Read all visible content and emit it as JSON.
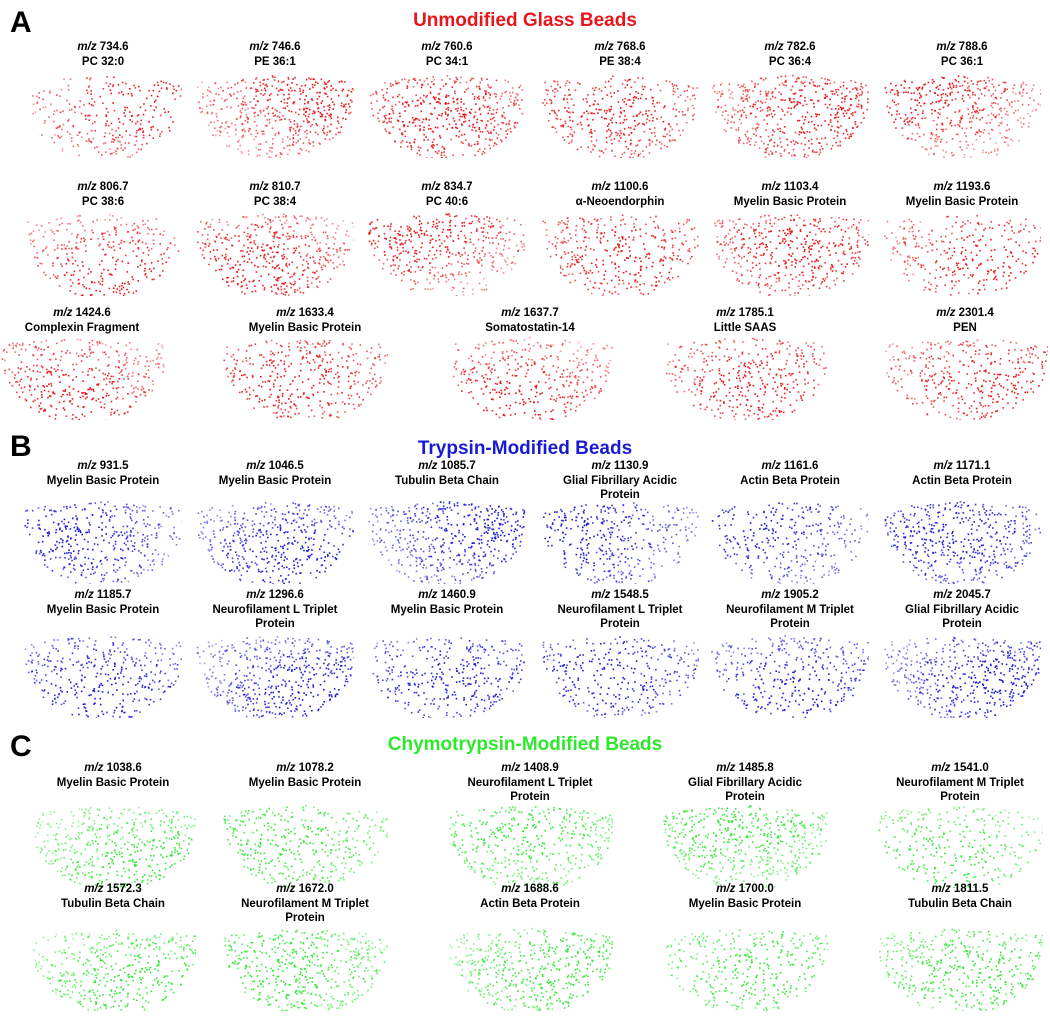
{
  "panels": [
    {
      "letter": "A",
      "title": "Unmodified Glass Beads",
      "rows": [
        [
          {
            "prefix": "m/z",
            "mz": "734.6",
            "name": "PC 32:0"
          },
          {
            "prefix": "m/z",
            "mz": "746.6",
            "name": "PE 36:1"
          },
          {
            "prefix": "m/z",
            "mz": "760.6",
            "name": "PC 34:1"
          },
          {
            "prefix": "m/z",
            "mz": "768.6",
            "name": "PE 38:4"
          },
          {
            "prefix": "m/z",
            "mz": "782.6",
            "name": "PC 36:4"
          },
          {
            "prefix": "m/z",
            "mz": "788.6",
            "name": "PC 36:1"
          }
        ],
        [
          {
            "prefix": "m/z",
            "mz": "806.7",
            "name": "PC 38:6"
          },
          {
            "prefix": "m/z",
            "mz": "810.7",
            "name": "PC 38:4"
          },
          {
            "prefix": "m/z",
            "mz": "834.7",
            "name": "PC 40:6"
          },
          {
            "prefix": "m/z",
            "mz": "1100.6",
            "name": "α-Neoendorphin"
          },
          {
            "prefix": "m/z",
            "mz": "1103.4",
            "name": "Myelin Basic Protein"
          },
          {
            "prefix": "m/z",
            "mz": "1193.6",
            "name": "Myelin Basic Protein"
          }
        ],
        [
          {
            "prefix": "m/z",
            "mz": "1424.6",
            "name": "Complexin Fragment"
          },
          {
            "prefix": "m/z",
            "mz": "1633.4",
            "name": "Myelin Basic Protein"
          },
          {
            "prefix": "m/z",
            "mz": "1637.7",
            "name": "Somatostatin-14"
          },
          {
            "prefix": "m/z",
            "mz": "1785.1",
            "name": "Little SAAS"
          },
          {
            "prefix": "m/z",
            "mz": "2301.4",
            "name": "PEN"
          }
        ]
      ]
    },
    {
      "letter": "B",
      "title": "Trypsin-Modified Beads",
      "rows": [
        [
          {
            "prefix": "m/z",
            "mz": "931.5",
            "name": "Myelin Basic Protein"
          },
          {
            "prefix": "m/z",
            "mz": "1046.5",
            "name": "Myelin Basic Protein"
          },
          {
            "prefix": "m/z",
            "mz": "1085.7",
            "name": "Tubulin Beta Chain"
          },
          {
            "prefix": "m/z",
            "mz": "1130.9",
            "name": "Glial Fibrillary Acidic Protein"
          },
          {
            "prefix": "m/z",
            "mz": "1161.6",
            "name": "Actin Beta Protein"
          },
          {
            "prefix": "m/z",
            "mz": "1171.1",
            "name": "Actin Beta Protein"
          }
        ],
        [
          {
            "prefix": "m/z",
            "mz": "1185.7",
            "name": "Myelin Basic Protein"
          },
          {
            "prefix": "m/z",
            "mz": "1296.6",
            "name": "Neurofilament L Triplet Protein"
          },
          {
            "prefix": "m/z",
            "mz": "1460.9",
            "name": "Myelin Basic Protein"
          },
          {
            "prefix": "m/z",
            "mz": "1548.5",
            "name": "Neurofilament L Triplet Protein"
          },
          {
            "prefix": "m/z",
            "mz": "1905.2",
            "name": "Neurofilament M Triplet Protein"
          },
          {
            "prefix": "m/z",
            "mz": "2045.7",
            "name": "Glial Fibrillary Acidic Protein"
          }
        ]
      ]
    },
    {
      "letter": "C",
      "title": "Chymotrypsin-Modified Beads",
      "rows": [
        [
          {
            "prefix": "m/z",
            "mz": "1038.6",
            "name": "Myelin Basic Protein"
          },
          {
            "prefix": "m/z",
            "mz": "1078.2",
            "name": "Myelin Basic Protein"
          },
          {
            "prefix": "m/z",
            "mz": "1408.9",
            "name": "Neurofilament L Triplet Protein"
          },
          {
            "prefix": "m/z",
            "mz": "1485.8",
            "name": "Glial Fibrillary Acidic Protein"
          },
          {
            "prefix": "m/z",
            "mz": "1541.0",
            "name": "Neurofilament M Triplet Protein"
          }
        ],
        [
          {
            "prefix": "m/z",
            "mz": "1572.3",
            "name": "Tubulin Beta Chain"
          },
          {
            "prefix": "m/z",
            "mz": "1672.0",
            "name": "Neurofilament M Triplet Protein"
          },
          {
            "prefix": "m/z",
            "mz": "1688.6",
            "name": "Actin Beta Protein"
          },
          {
            "prefix": "m/z",
            "mz": "1700.0",
            "name": "Myelin Basic Protein"
          },
          {
            "prefix": "m/z",
            "mz": "1811.5",
            "name": "Tubulin Beta Chain"
          }
        ]
      ]
    }
  ]
}
